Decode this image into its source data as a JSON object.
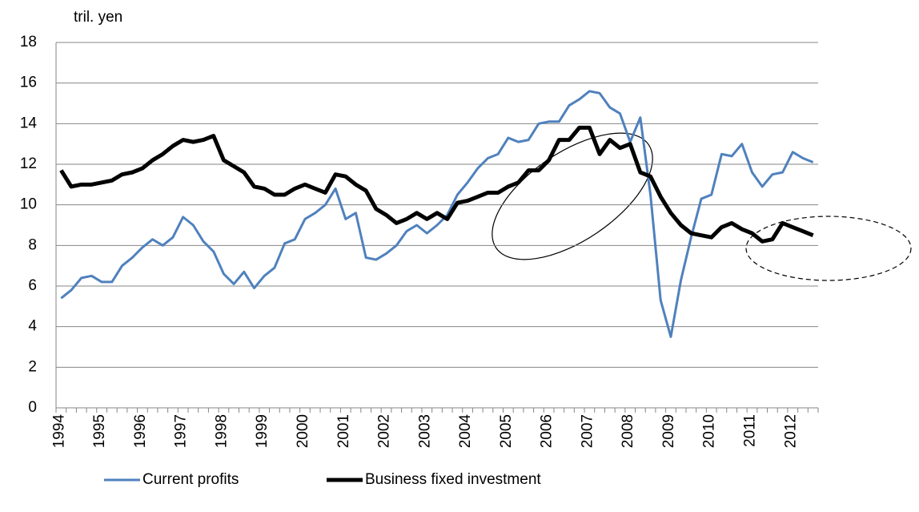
{
  "chart_data": {
    "type": "line",
    "y_label": "tril. yen",
    "categories": [
      "1994",
      null,
      null,
      null,
      "1995",
      null,
      null,
      null,
      "1996",
      null,
      null,
      null,
      "1997",
      null,
      null,
      null,
      "1998",
      null,
      null,
      null,
      "1999",
      null,
      null,
      null,
      "2000",
      null,
      null,
      null,
      "2001",
      null,
      null,
      null,
      "2002",
      null,
      null,
      null,
      "2003",
      null,
      null,
      null,
      "2004",
      null,
      null,
      null,
      "2005",
      null,
      null,
      null,
      "2006",
      null,
      null,
      null,
      "2007",
      null,
      null,
      null,
      "2008",
      null,
      null,
      null,
      "2009",
      null,
      null,
      null,
      "2010",
      null,
      null,
      null,
      "2011",
      null,
      null,
      null,
      "2012",
      null,
      null
    ],
    "series": [
      {
        "name": "Current profits",
        "color": "#4f81bd",
        "width": 3,
        "values": [
          5.4,
          5.8,
          6.4,
          6.5,
          6.2,
          6.2,
          7.0,
          7.4,
          7.9,
          8.3,
          8.0,
          8.4,
          9.4,
          9.0,
          8.2,
          7.7,
          6.6,
          6.1,
          6.7,
          5.9,
          6.5,
          6.9,
          8.1,
          8.3,
          9.3,
          9.6,
          10.0,
          10.8,
          9.3,
          9.6,
          7.4,
          7.3,
          7.6,
          8.0,
          8.7,
          9.0,
          8.6,
          9.0,
          9.5,
          10.5,
          11.1,
          11.8,
          12.3,
          12.5,
          13.3,
          13.1,
          13.2,
          14.0,
          14.1,
          14.1,
          14.9,
          15.2,
          15.6,
          15.5,
          14.8,
          14.5,
          13.1,
          14.3,
          10.5,
          5.3,
          3.5,
          6.3,
          8.4,
          10.3,
          10.5,
          12.5,
          12.4,
          13.0,
          11.6,
          10.9,
          11.5,
          11.6,
          12.6,
          12.3,
          12.1
        ]
      },
      {
        "name": "Business fixed investment",
        "color": "#000000",
        "width": 5,
        "values": [
          11.7,
          10.9,
          11.0,
          11.0,
          11.1,
          11.2,
          11.5,
          11.6,
          11.8,
          12.2,
          12.5,
          12.9,
          13.2,
          13.1,
          13.2,
          13.4,
          12.2,
          11.9,
          11.6,
          10.9,
          10.8,
          10.5,
          10.5,
          10.8,
          11.0,
          10.8,
          10.6,
          11.5,
          11.4,
          11.0,
          10.7,
          9.8,
          9.5,
          9.1,
          9.3,
          9.6,
          9.3,
          9.6,
          9.3,
          10.1,
          10.2,
          10.4,
          10.6,
          10.6,
          10.9,
          11.1,
          11.7,
          11.7,
          12.2,
          13.2,
          13.2,
          13.8,
          13.8,
          12.5,
          13.2,
          12.8,
          13.0,
          11.6,
          11.4,
          10.4,
          9.6,
          9.0,
          8.6,
          8.5,
          8.4,
          8.9,
          9.1,
          8.8,
          8.6,
          8.2,
          8.3,
          9.1,
          8.9,
          8.7,
          8.5
        ]
      }
    ],
    "ylim": [
      0,
      18
    ],
    "yticks": [
      0,
      2,
      4,
      6,
      8,
      10,
      12,
      14,
      16,
      18
    ],
    "grid": true
  }
}
